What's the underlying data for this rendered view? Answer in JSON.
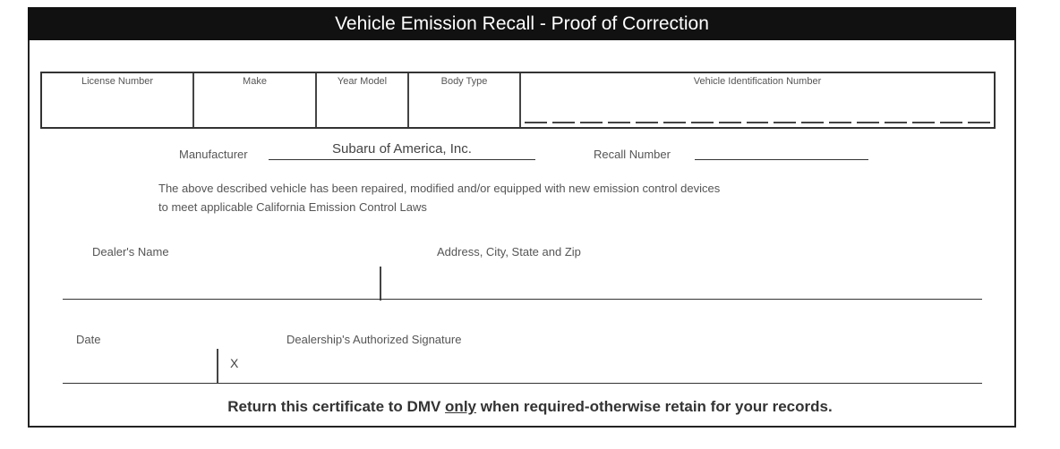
{
  "title": "Vehicle Emission Recall - Proof of Correction",
  "header_fields": {
    "license_number": "License Number",
    "make": "Make",
    "year_model": "Year Model",
    "body_type": "Body Type",
    "vin": "Vehicle Identification Number"
  },
  "manufacturer": {
    "label": "Manufacturer",
    "value": "Subaru of America, Inc."
  },
  "recall_number": {
    "label": "Recall Number",
    "value": ""
  },
  "statement": {
    "line1": "The above described vehicle has been repaired, modified and/or equipped with new emission control devices",
    "line2": "to meet applicable California Emission Control Laws"
  },
  "dealer_name_label": "Dealer's Name",
  "address_label": "Address, City, State and Zip",
  "date_label": "Date",
  "signature_label": "Dealership's Authorized Signature",
  "signature_mark": "X",
  "footer": {
    "before": "Return this certificate to DMV ",
    "emphasis": "only",
    "after": " when required-otherwise retain for your records."
  }
}
